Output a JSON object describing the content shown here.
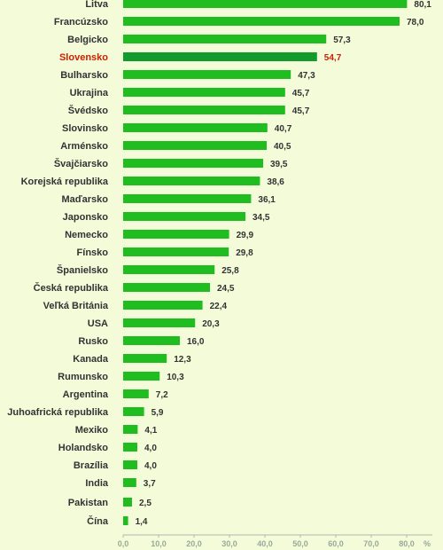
{
  "chart_data": {
    "type": "bar",
    "orientation": "horizontal",
    "categories": [
      "Litva",
      "Francúzsko",
      "Belgicko",
      "Slovensko",
      "Bulharsko",
      "Ukrajina",
      "Švédsko",
      "Slovinsko",
      "Arménsko",
      "Švajčiarsko",
      "Korejská republika",
      "Maďarsko",
      "Japonsko",
      "Nemecko",
      "Fínsko",
      "Španielsko",
      "Česká republika",
      "Veľká Británia",
      "USA",
      "Rusko",
      "Kanada",
      "Rumunsko",
      "Argentina",
      "Juhoafrická republika",
      "Mexiko",
      "Holandsko",
      "Brazília",
      "India",
      "Pakistan",
      "Čína"
    ],
    "values": [
      80.1,
      78.0,
      57.3,
      54.7,
      47.3,
      45.7,
      45.7,
      40.7,
      40.5,
      39.5,
      38.6,
      36.1,
      34.5,
      29.9,
      29.8,
      25.8,
      24.5,
      22.4,
      20.3,
      16.0,
      12.3,
      10.3,
      7.2,
      5.9,
      4.1,
      4.0,
      4.0,
      3.7,
      2.5,
      1.4
    ],
    "value_labels": [
      "80,1",
      "78,0",
      "57,3",
      "54,7",
      "47,3",
      "45,7",
      "45,7",
      "40,7",
      "40,5",
      "39,5",
      "38,6",
      "36,1",
      "34,5",
      "29,9",
      "29,8",
      "25,8",
      "24,5",
      "22,4",
      "20,3",
      "16,0",
      "12,3",
      "10,3",
      "7,2",
      "5,9",
      "4,1",
      "4,0",
      "4,0",
      "3,7",
      "2,5",
      "1,4"
    ],
    "highlight_index": 3,
    "xlim": [
      0,
      80
    ],
    "x_ticks": [
      0,
      10,
      20,
      30,
      40,
      50,
      60,
      70,
      80
    ],
    "x_tick_labels": [
      "0,0",
      "10,0",
      "20,0",
      "30,0",
      "40,0",
      "50,0",
      "60,0",
      "70,0",
      "80,0"
    ],
    "x_unit_label": "%",
    "grid": false,
    "colors": {
      "bar": "#1fbd1f",
      "highlight_bar": "#139a2c",
      "highlight_text": "#cc2200",
      "text": "#333333",
      "axis": "#aabbaa",
      "background": "#f3fbd9"
    }
  }
}
